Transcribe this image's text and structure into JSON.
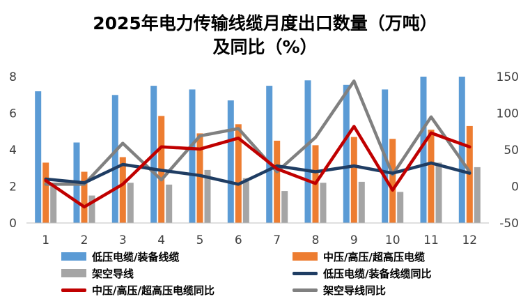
{
  "chart_data": {
    "type": "bar",
    "title": "2025年电力传输线缆月度出口数量（万吨）",
    "subtitle": "及同比（%）",
    "categories": [
      "1",
      "2",
      "3",
      "4",
      "5",
      "6",
      "7",
      "8",
      "9",
      "10",
      "11",
      "12"
    ],
    "y_left": {
      "range": [
        0,
        8
      ],
      "ticks": [
        "0",
        "2",
        "4",
        "6",
        "8"
      ]
    },
    "y_right": {
      "range": [
        -50,
        150
      ],
      "ticks": [
        "-50",
        "0",
        "50",
        "100",
        "150"
      ]
    },
    "series": [
      {
        "name": "低压电缆/装备线缆",
        "kind": "bar",
        "axis": "left",
        "color": "#5B9BD5",
        "values": [
          7.2,
          4.4,
          7.0,
          7.5,
          7.3,
          6.7,
          7.5,
          7.8,
          7.55,
          7.3,
          8.0,
          8.0
        ]
      },
      {
        "name": "中压/高压/超高压电缆",
        "kind": "bar",
        "axis": "left",
        "color": "#ED7D31",
        "values": [
          3.3,
          2.8,
          3.6,
          5.85,
          4.9,
          5.4,
          4.5,
          4.25,
          4.7,
          4.6,
          5.1,
          5.3
        ]
      },
      {
        "name": "架空导线",
        "kind": "bar",
        "axis": "left",
        "color": "#A5A5A5",
        "values": [
          2.2,
          1.5,
          2.2,
          2.1,
          2.9,
          2.45,
          1.75,
          2.2,
          2.25,
          1.7,
          3.3,
          3.05
        ]
      },
      {
        "name": "低压电缆/装备线缆同比",
        "kind": "line",
        "axis": "right",
        "color": "#1F3D63",
        "values": [
          10,
          5,
          30,
          22,
          15,
          3,
          28,
          20,
          28,
          18,
          32,
          18
        ]
      },
      {
        "name": "中压/高压/超高压电缆同比",
        "kind": "line",
        "axis": "right",
        "color": "#C00000",
        "values": [
          8,
          -28,
          3,
          54,
          51,
          66,
          24,
          4,
          82,
          -5,
          73,
          54
        ]
      },
      {
        "name": "架空导线同比",
        "kind": "line",
        "axis": "right",
        "color": "#808080",
        "values": [
          3,
          3,
          59,
          9,
          69,
          79,
          20,
          67,
          144,
          16,
          95,
          20
        ]
      }
    ],
    "grid": false,
    "legend": "bottom"
  }
}
